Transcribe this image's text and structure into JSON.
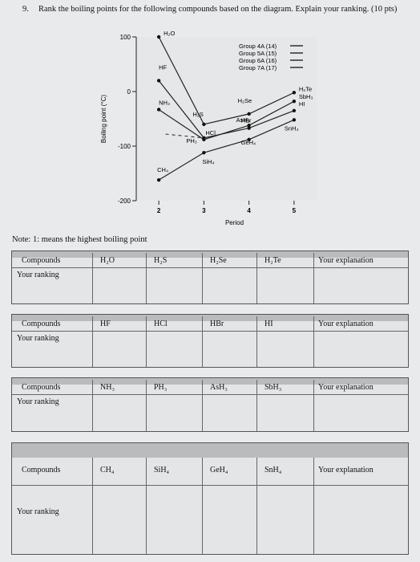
{
  "question": {
    "number": "9.",
    "text": "Rank the boiling points for the following compounds based on the diagram. Explain your ranking. (10 pts)"
  },
  "chart_data": {
    "type": "line",
    "xlabel": "Period",
    "ylabel": "Boiling point (°C)",
    "xlim": [
      1.5,
      5.5
    ],
    "ylim": [
      -200,
      100
    ],
    "x_ticks": [
      "2",
      "3",
      "4",
      "5"
    ],
    "y_ticks": [
      "100",
      "0",
      "-100",
      "-200"
    ],
    "legend": [
      "Group 4A (14)",
      "Group 5A (15)",
      "Group 6A (16)",
      "Group 7A (17)"
    ],
    "series": [
      {
        "name": "Group 4A (14)",
        "x": [
          2,
          3,
          4,
          5
        ],
        "y": [
          -162,
          -112,
          -88,
          -52
        ],
        "labels": [
          "CH4",
          "SiH4",
          "GeH4",
          "SnH4"
        ]
      },
      {
        "name": "Group 5A (15)",
        "x": [
          2,
          3,
          4,
          5
        ],
        "y": [
          -33,
          -88,
          -62,
          -18
        ],
        "labels": [
          "NH3",
          "PH3",
          "AsH3",
          "SbH3"
        ]
      },
      {
        "name": "Group 6A (16)",
        "x": [
          2,
          3,
          4,
          5
        ],
        "y": [
          100,
          -60,
          -41,
          -2
        ],
        "labels": [
          "H2O",
          "H2S",
          "H2Se",
          "H2Te"
        ]
      },
      {
        "name": "Group 7A (17)",
        "x": [
          2,
          3,
          4,
          5
        ],
        "y": [
          20,
          -85,
          -67,
          -35
        ],
        "labels": [
          "HF",
          "HCl",
          "HBr",
          "HI"
        ]
      }
    ],
    "point_labels": {
      "H2O": "H₂O",
      "HF": "HF",
      "NH3": "NH₃",
      "H2S": "H₂S",
      "HCl": "HCl",
      "PH3": "PH₃",
      "SiH4": "SiH₄",
      "CH4": "CH₄",
      "H2Se": "H₂Se",
      "AsH3": "AsH₃",
      "HBr": "HBr",
      "GeH4": "GeH₄",
      "H2Te": "H₂Te",
      "SbH3": "SbH₃",
      "HI": "HI",
      "SnH4": "SnH₄"
    }
  },
  "table": {
    "note": "Note: 1: means the highest boiling point",
    "compounds_label": "Compounds",
    "ranking_label": "Your ranking",
    "explanation_label": "Your explanation",
    "blocks": [
      {
        "compounds": [
          "H₂O",
          "H₂S",
          "H₂Se",
          "H₂Te"
        ]
      },
      {
        "compounds": [
          "HF",
          "HCl",
          "HBr",
          "HI"
        ]
      },
      {
        "compounds": [
          "NH₃",
          "PH₃",
          "AsH₃",
          "SbH₃"
        ]
      },
      {
        "compounds": [
          "CH₄",
          "SiH₄",
          "GeH₄",
          "SnH₄"
        ]
      }
    ]
  }
}
